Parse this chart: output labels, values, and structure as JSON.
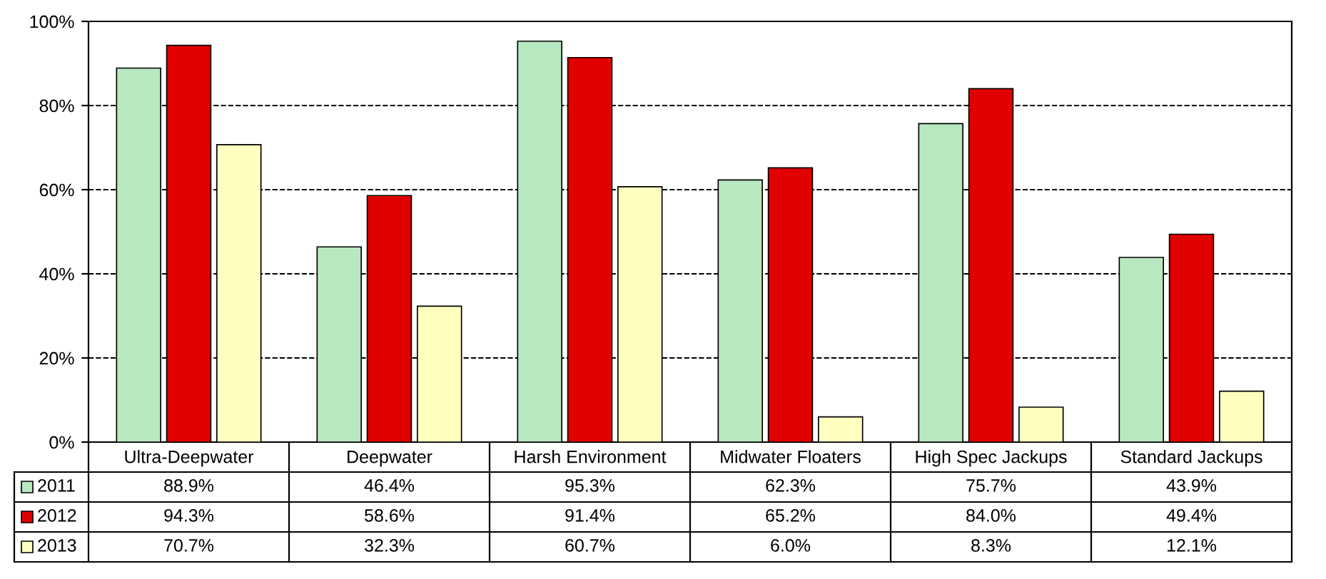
{
  "chart_data": {
    "type": "bar",
    "categories": [
      "Ultra-Deepwater",
      "Deepwater",
      "Harsh Environment",
      "Midwater Floaters",
      "High Spec Jackups",
      "Standard Jackups"
    ],
    "series": [
      {
        "name": "2011",
        "color": "#b8e8c0",
        "values": [
          88.9,
          46.4,
          95.3,
          62.3,
          75.7,
          43.9
        ]
      },
      {
        "name": "2012",
        "color": "#e00000",
        "values": [
          94.3,
          58.6,
          91.4,
          65.2,
          84.0,
          49.4
        ]
      },
      {
        "name": "2013",
        "color": "#ffffc0",
        "values": [
          70.7,
          32.3,
          60.7,
          6.0,
          8.3,
          12.1
        ]
      }
    ],
    "value_labels": [
      [
        "88.9%",
        "46.4%",
        "95.3%",
        "62.3%",
        "75.7%",
        "43.9%"
      ],
      [
        "94.3%",
        "58.6%",
        "91.4%",
        "65.2%",
        "84.0%",
        "49.4%"
      ],
      [
        "70.7%",
        "32.3%",
        "60.7%",
        "6.0%",
        "8.3%",
        "12.1%"
      ]
    ],
    "ylim": [
      0,
      100
    ],
    "yticks": [
      {
        "value": 0,
        "label": "0%"
      },
      {
        "value": 20,
        "label": "20%"
      },
      {
        "value": 40,
        "label": "40%"
      },
      {
        "value": 60,
        "label": "60%"
      },
      {
        "value": 80,
        "label": "80%"
      },
      {
        "value": 100,
        "label": "100%"
      }
    ],
    "grid": "y",
    "legend": "bottom left",
    "line_style": "dashed"
  }
}
